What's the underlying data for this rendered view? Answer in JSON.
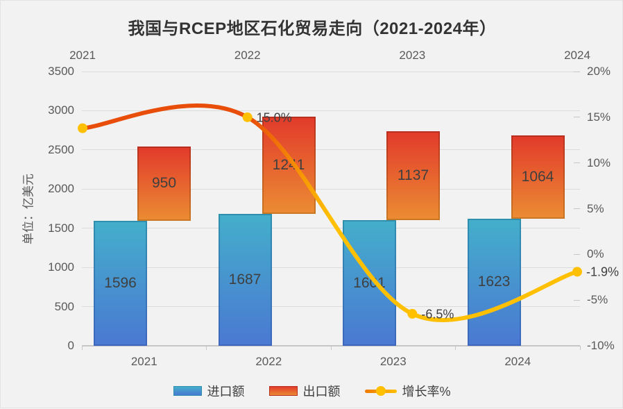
{
  "title": "我国与RCEP地区石化贸易走向（2021-2024年）",
  "y_axis_title": "单位：亿美元",
  "legend": {
    "items": [
      {
        "key": "imports",
        "label": "进口额",
        "swatch": "bar-blue"
      },
      {
        "key": "exports",
        "label": "出口额",
        "swatch": "bar-orange"
      },
      {
        "key": "growth",
        "label": "增长率%",
        "swatch": "line"
      }
    ]
  },
  "chart_data": {
    "type": "combo stacked-bar + smoothed line",
    "title": "我国与RCEP地区石化贸易走向（2021-2024年）",
    "categories": [
      "2021",
      "2022",
      "2023",
      "2024"
    ],
    "series": [
      {
        "name": "进口额",
        "type": "bar",
        "axis": "left",
        "values": [
          1596,
          1687,
          1601,
          1623
        ]
      },
      {
        "name": "出口额",
        "type": "bar",
        "axis": "left",
        "stacked_on": "进口额",
        "values": [
          950,
          1241,
          1137,
          1064
        ]
      },
      {
        "name": "增长率%",
        "type": "line",
        "axis": "right",
        "smooth": true,
        "values": [
          13.8,
          15.0,
          -6.5,
          -1.9
        ],
        "point_labels": [
          "",
          "15.0%",
          "-6.5%",
          "-1.9%"
        ]
      }
    ],
    "left_axis": {
      "title": "单位：亿美元",
      "min": 0,
      "max": 3500,
      "step": 500,
      "ticks": [
        "3500",
        "3000",
        "2500",
        "2000",
        "1500",
        "1000",
        "500",
        "0"
      ]
    },
    "right_axis": {
      "min": -10,
      "max": 20,
      "step": 5,
      "ticks": [
        "20%",
        "15%",
        "10%",
        "5%",
        "0%",
        "-5%",
        "-10%"
      ]
    },
    "top_axis_labels": [
      "2021",
      "2022",
      "2023",
      "2024"
    ],
    "bottom_axis_labels": [
      "2021",
      "2022",
      "2023",
      "2024"
    ],
    "grid": true,
    "legend_position": "bottom"
  },
  "colors": {
    "background": "#F2F2F2",
    "grid": "#DBDBDB",
    "axis_line": "#C6C6C6",
    "axis_text": "#595959",
    "data_label": "#3F3F3F",
    "title_text": "#333333",
    "import_bar": {
      "top": "#44AECB",
      "bottom": "#4A79D2",
      "border_top": "#2E8FAE",
      "border_bottom": "#3E66BE"
    },
    "export_bar": {
      "top": "#E23B2B",
      "bottom": "#EB8B33",
      "border_top": "#B92F1F",
      "border_bottom": "#C97722"
    },
    "growth_line": {
      "start": "#E84E09",
      "end": "#FFC002",
      "marker": "#FFC002"
    }
  }
}
